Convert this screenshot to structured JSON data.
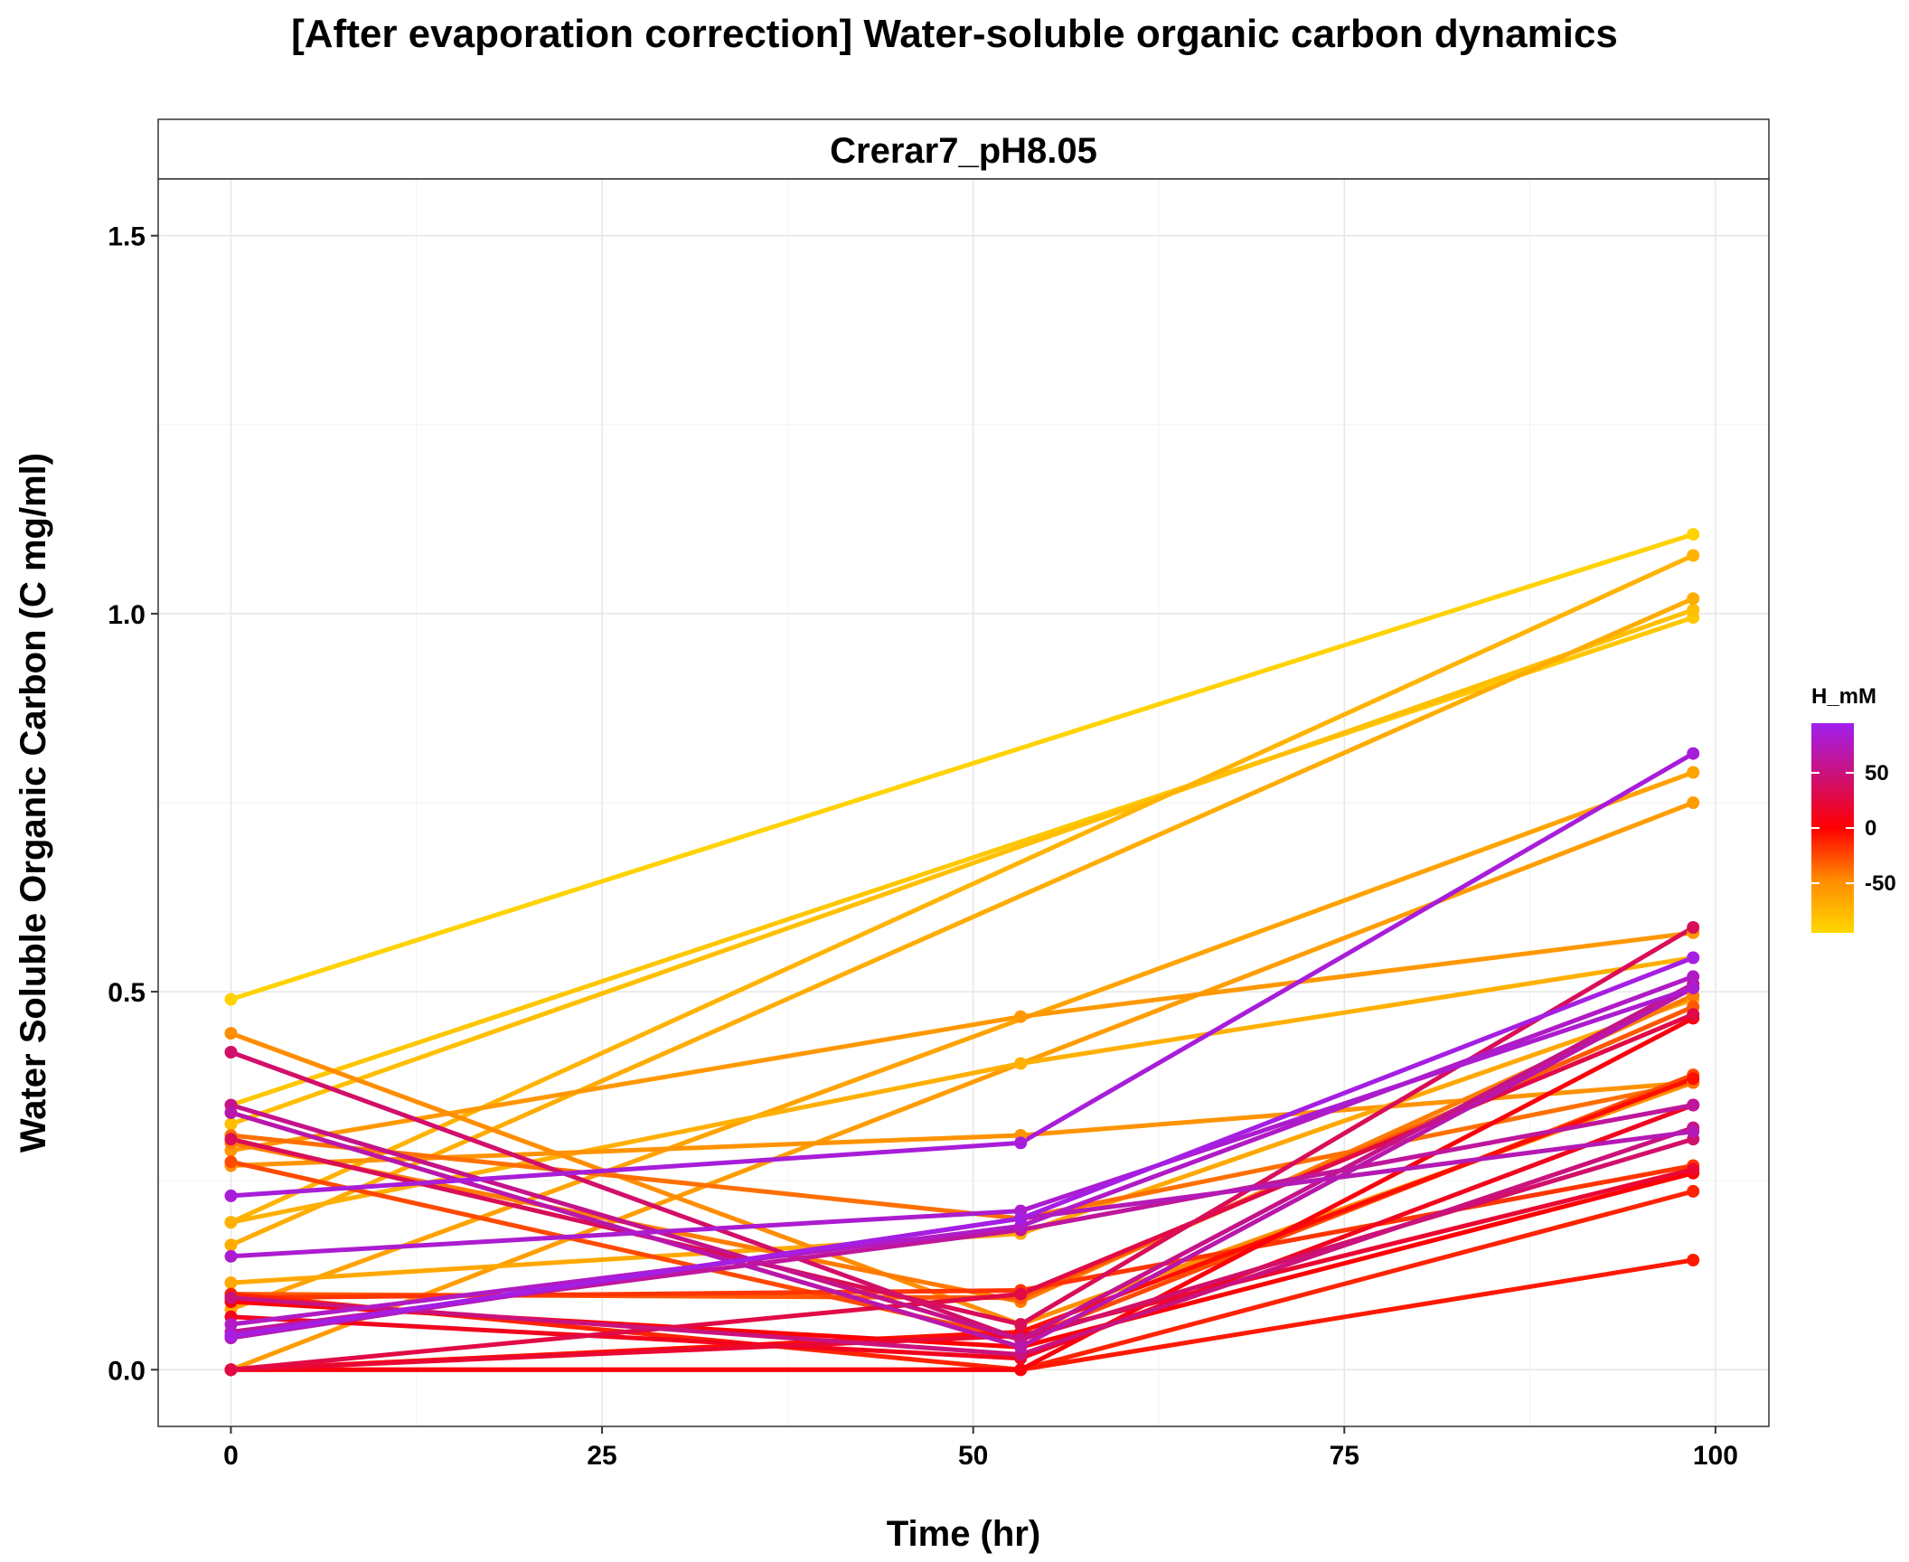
{
  "chart_data": {
    "type": "line",
    "title": "[After evaporation correction] Water-soluble organic carbon dynamics",
    "facet_label": "Crerar7_pH8.05",
    "xlabel": "Time (hr)",
    "ylabel": "Water Soluble Organic Carbon (C mg/ml)",
    "xlim": [
      -4.9,
      103.6
    ],
    "ylim": [
      -0.075,
      1.575
    ],
    "x_ticks": [
      0,
      25,
      50,
      75,
      100
    ],
    "y_ticks": [
      0.0,
      0.5,
      1.0,
      1.5
    ],
    "x_tick_labels": [
      "0",
      "25",
      "50",
      "75",
      "100"
    ],
    "y_tick_labels": [
      "0.0",
      "0.5",
      "1.0",
      "1.5"
    ],
    "grid": true,
    "x_timepoints": [
      0,
      53.2,
      98.5
    ],
    "legend": {
      "title": "H_mM",
      "position": "right",
      "type": "colorbar",
      "range": [
        -95,
        95
      ],
      "breaks": [
        50,
        0,
        -50
      ],
      "break_labels": [
        "50",
        "0",
        "-50"
      ],
      "colors": [
        "#ffd700",
        "#ff8c00",
        "#ff0000",
        "#cc1177",
        "#a020f0"
      ]
    },
    "series": [
      {
        "h": -92,
        "values": [
          0.49,
          null,
          1.105
        ]
      },
      {
        "h": -85,
        "values": [
          0.35,
          null,
          0.995
        ]
      },
      {
        "h": -80,
        "values": [
          0.325,
          null,
          1.005
        ]
      },
      {
        "h": -72,
        "values": [
          0.195,
          null,
          1.077
        ]
      },
      {
        "h": -68,
        "values": [
          0.165,
          null,
          1.02
        ]
      },
      {
        "h": -62,
        "values": [
          0.08,
          null,
          0.79
        ]
      },
      {
        "h": -58,
        "values": [
          0.0,
          null,
          0.75
        ]
      },
      {
        "h": -70,
        "values": [
          0.195,
          0.405,
          0.545
        ]
      },
      {
        "h": -55,
        "values": [
          0.29,
          0.467,
          0.578
        ]
      },
      {
        "h": -52,
        "values": [
          0.27,
          0.31,
          0.38
        ]
      },
      {
        "h": -65,
        "values": [
          0.115,
          0.18,
          0.49
        ]
      },
      {
        "h": -48,
        "values": [
          0.445,
          0.06,
          0.38
        ]
      },
      {
        "h": -42,
        "values": [
          0.3,
          0.09,
          0.495
        ]
      },
      {
        "h": -38,
        "values": [
          0.31,
          0.2,
          0.38
        ]
      },
      {
        "h": -30,
        "values": [
          0.1,
          0.095,
          0.48
        ]
      },
      {
        "h": -25,
        "values": [
          0.275,
          0.04,
          0.39
        ]
      },
      {
        "h": -18,
        "values": [
          0.095,
          0.105,
          0.27
        ]
      },
      {
        "h": -12,
        "values": [
          0.1,
          0.0,
          0.236
        ]
      },
      {
        "h": -8,
        "values": [
          0.0,
          0.0,
          0.145
        ]
      },
      {
        "h": -5,
        "values": [
          0.0,
          0.05,
          0.385
        ]
      },
      {
        "h": 0,
        "values": [
          0.09,
          0.03,
          0.26
        ]
      },
      {
        "h": 5,
        "values": [
          0.0,
          0.0,
          0.465
        ]
      },
      {
        "h": 12,
        "values": [
          0.07,
          0.015,
          0.35
        ]
      },
      {
        "h": 20,
        "values": [
          0.0,
          0.045,
          0.265
        ]
      },
      {
        "h": 28,
        "values": [
          0.0,
          0.1,
          0.47
        ]
      },
      {
        "h": 35,
        "values": [
          0.305,
          0.06,
          0.585
        ]
      },
      {
        "h": 42,
        "values": [
          0.42,
          0.04,
          0.305
        ]
      },
      {
        "h": 50,
        "values": [
          0.095,
          0.02,
          0.32
        ]
      },
      {
        "h": 55,
        "values": [
          0.35,
          0.04,
          0.51
        ]
      },
      {
        "h": 62,
        "values": [
          0.05,
          0.185,
          0.35
        ]
      },
      {
        "h": 68,
        "values": [
          0.34,
          0.03,
          0.505
        ]
      },
      {
        "h": 72,
        "values": [
          0.042,
          0.2,
          0.315
        ]
      },
      {
        "h": 78,
        "values": [
          0.06,
          0.19,
          0.52
        ]
      },
      {
        "h": 82,
        "values": [
          0.15,
          0.21,
          0.505
        ]
      },
      {
        "h": 86,
        "values": [
          0.23,
          0.3,
          0.815
        ]
      },
      {
        "h": 90,
        "values": [
          0.045,
          0.2,
          0.545
        ]
      }
    ]
  }
}
